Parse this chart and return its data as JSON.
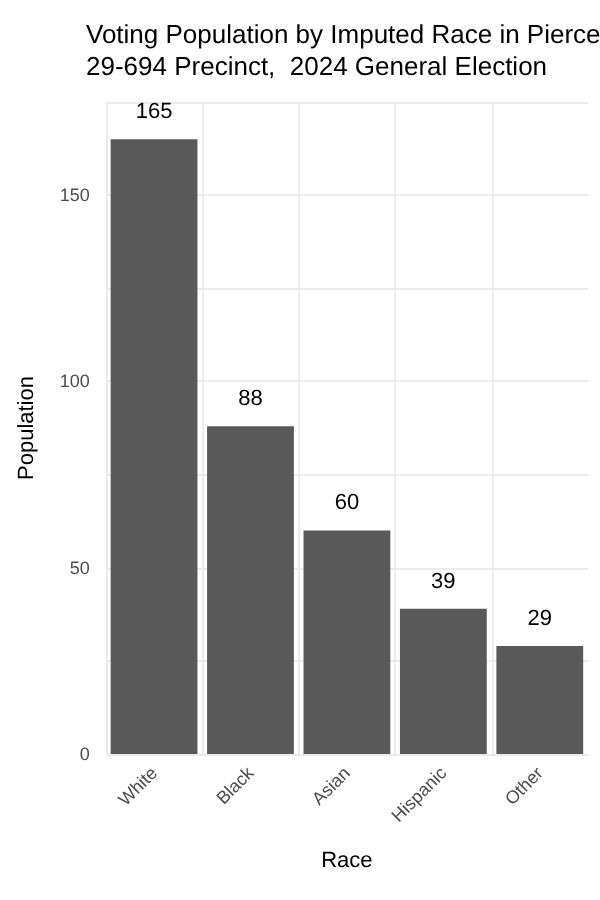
{
  "chart_data": {
    "type": "bar",
    "title": "Voting Population by Imputed Race in Pierce\n29-694 Precinct,  2024 General Election",
    "xlabel": "Race",
    "ylabel": "Population",
    "categories": [
      "White",
      "Black",
      "Asian",
      "Hispanic",
      "Other"
    ],
    "values": [
      165,
      88,
      60,
      39,
      29
    ],
    "color": "#595959",
    "data_labels": true,
    "ylim": [
      0,
      175
    ],
    "yticks": [
      0,
      {
        "value": 25,
        "label": null
      },
      50,
      {
        "value": 75,
        "label": null
      },
      100,
      {
        "value": 125,
        "label": null
      },
      150,
      {
        "value": 175,
        "label": null
      }
    ],
    "grid": true
  }
}
